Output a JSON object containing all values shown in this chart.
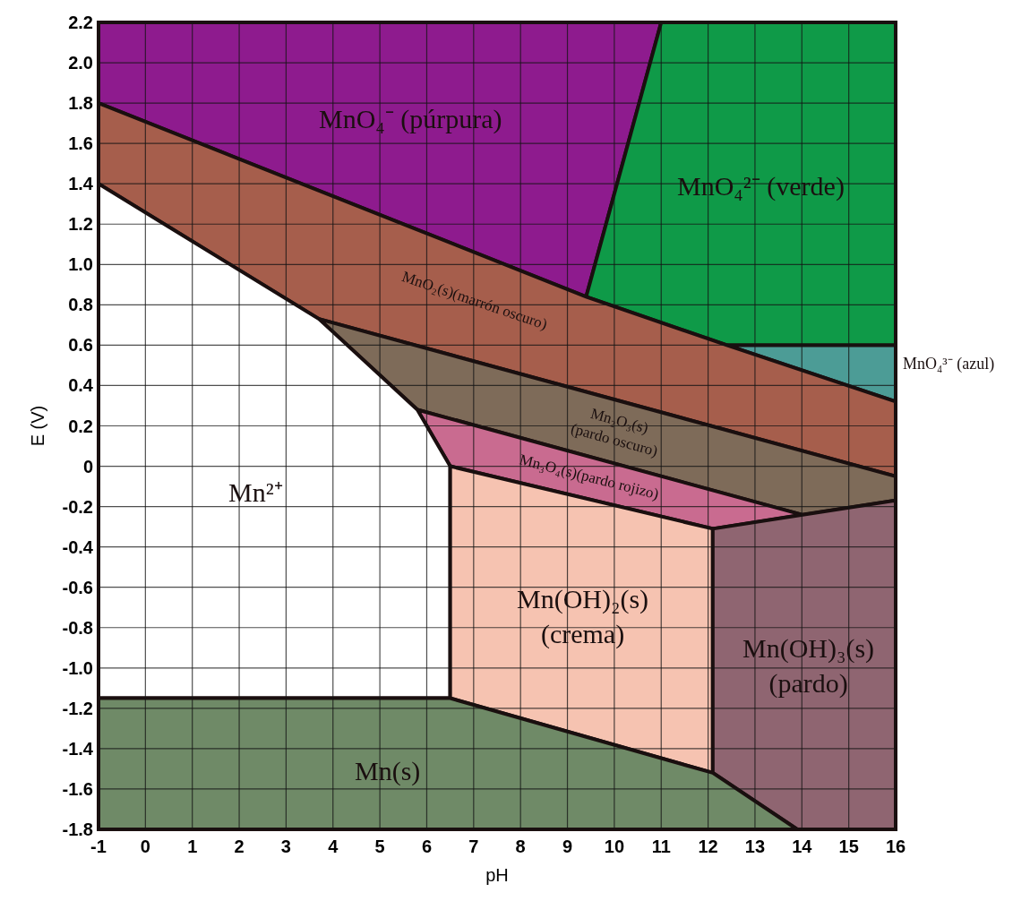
{
  "chart_data": {
    "type": "area",
    "xlabel": "pH",
    "ylabel": "E (V)",
    "xlim": [
      -1,
      16
    ],
    "ylim": [
      -1.8,
      2.2
    ],
    "xticks": [
      -1,
      0,
      1,
      2,
      3,
      4,
      5,
      6,
      7,
      8,
      9,
      10,
      11,
      12,
      13,
      14,
      15,
      16
    ],
    "yticks": [
      {
        "value": -1.8,
        "label": "-1.8"
      },
      {
        "value": -1.6,
        "label": "-1.6"
      },
      {
        "value": -1.4,
        "label": "-1.4"
      },
      {
        "value": -1.2,
        "label": "-1.2"
      },
      {
        "value": -1,
        "label": "-1.0"
      },
      {
        "value": -0.8,
        "label": "-0.8"
      },
      {
        "value": -0.6,
        "label": "-0.6"
      },
      {
        "value": -0.4,
        "label": "-0.4"
      },
      {
        "value": -0.2,
        "label": "-0.2"
      },
      0,
      {
        "value": 0.2,
        "label": "0.2"
      },
      {
        "value": 0.4,
        "label": "0.4"
      },
      {
        "value": 0.6,
        "label": "0.6"
      },
      {
        "value": 0.8,
        "label": "0.8"
      },
      {
        "value": 1,
        "label": "1.0"
      },
      {
        "value": 1.2,
        "label": "1.2"
      },
      {
        "value": 1.4,
        "label": "1.4"
      },
      {
        "value": 1.6,
        "label": "1.6"
      },
      {
        "value": 1.8,
        "label": "1.8"
      },
      {
        "value": 2,
        "label": "2.0"
      },
      {
        "value": 2.2,
        "label": "2.2"
      }
    ],
    "grid": true,
    "legend": false,
    "series": [
      {
        "name": "MnO₄⁻ (púrpura)",
        "color": "#8e1b8e",
        "x": [
          -1,
          -1,
          11,
          9.4
        ],
        "values": [
          1.8,
          2.2,
          2.2,
          0.84
        ]
      },
      {
        "name": "MnO₄²⁻ (verde)",
        "color": "#0f9a48",
        "x": [
          11,
          16,
          16,
          12.4,
          9.4
        ],
        "values": [
          2.2,
          2.2,
          0.6,
          0.6,
          0.84
        ]
      },
      {
        "name": "MnO₄³⁻ (azul)",
        "color": "#4c9c96",
        "x": [
          12.4,
          16,
          16
        ],
        "values": [
          0.6,
          0.6,
          0.32
        ]
      },
      {
        "name": "MnO₂(s)(marrón oscuro)",
        "color": "#a65e4c",
        "x": [
          -1,
          9.4,
          12.4,
          16,
          16,
          3.7,
          -1
        ],
        "values": [
          1.8,
          0.84,
          0.6,
          0.32,
          -0.05,
          0.73,
          1.4
        ]
      },
      {
        "name": "Mn₂O₃(s)\n(pardo oscuro)",
        "color": "#7e6b59",
        "x": [
          3.7,
          16,
          16,
          14,
          5.8
        ],
        "values": [
          0.73,
          -0.05,
          -0.17,
          -0.24,
          0.28
        ]
      },
      {
        "name": "Mn₃O₄(s)(pardo rojizo)",
        "color": "#c96b90",
        "x": [
          5.8,
          14,
          12.1,
          6.5
        ],
        "values": [
          0.28,
          -0.24,
          -0.31,
          0
        ]
      },
      {
        "name": "Mn²⁺",
        "color": "#ffffff",
        "x": [
          -1,
          3.7,
          5.8,
          6.5,
          6.5,
          -1
        ],
        "values": [
          1.4,
          0.73,
          0.28,
          0,
          -1.15,
          -1.15
        ]
      },
      {
        "name": "Mn(OH)₂(s)\n(crema)",
        "color": "#f6c3b1",
        "x": [
          6.5,
          12.1,
          12.1,
          6.5
        ],
        "values": [
          0,
          -0.31,
          -1.52,
          -1.15
        ]
      },
      {
        "name": "Mn(OH)₃(s)\n(pardo)",
        "color": "#8f6571",
        "x": [
          12.1,
          16,
          16,
          13.9,
          12.1
        ],
        "values": [
          -0.31,
          -0.17,
          -1.8,
          -1.8,
          -1.52
        ]
      },
      {
        "name": "Mn(s)",
        "color": "#6f8a67",
        "x": [
          -1,
          6.5,
          12.1,
          13.9,
          -1
        ],
        "values": [
          -1.15,
          -1.15,
          -1.52,
          -1.8,
          -1.8
        ]
      }
    ]
  }
}
